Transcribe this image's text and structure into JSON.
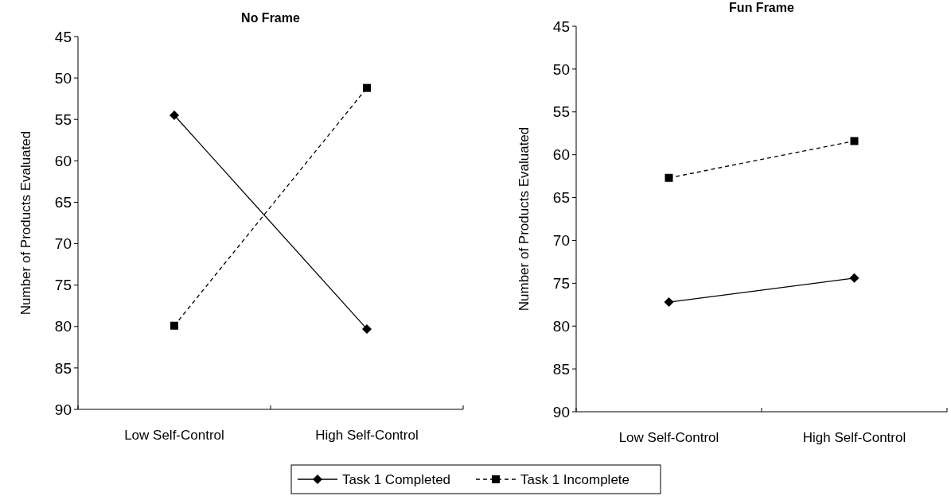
{
  "chart_data": [
    {
      "type": "line",
      "title": "No Frame",
      "ylabel": "Number of Products Evaluated",
      "categories": [
        "Low Self-Control",
        "High Self-Control"
      ],
      "ylim": [
        90,
        45
      ],
      "yticks": [
        45,
        50,
        55,
        60,
        65,
        70,
        75,
        80,
        85,
        90
      ],
      "grid": false,
      "legend": "bottom",
      "series": [
        {
          "name": "Task 1 Completed",
          "color": "#000000",
          "marker": "diamond",
          "line_style": "solid",
          "values": [
            54.5,
            80.3
          ]
        },
        {
          "name": "Task 1 Incomplete",
          "color": "#000000",
          "marker": "square",
          "line_style": "dashed",
          "values": [
            79.9,
            51.2
          ]
        }
      ]
    },
    {
      "type": "line",
      "title": "Fun Frame",
      "ylabel": "Number of Products Evaluated",
      "categories": [
        "Low Self-Control",
        "High Self-Control"
      ],
      "ylim": [
        90,
        45
      ],
      "yticks": [
        45,
        50,
        55,
        60,
        65,
        70,
        75,
        80,
        85,
        90
      ],
      "grid": false,
      "legend": "bottom",
      "series": [
        {
          "name": "Task 1 Completed",
          "color": "#000000",
          "marker": "diamond",
          "line_style": "solid",
          "values": [
            77.2,
            74.4
          ]
        },
        {
          "name": "Task 1 Incomplete",
          "color": "#000000",
          "marker": "square",
          "line_style": "dashed",
          "values": [
            62.7,
            58.4
          ]
        }
      ]
    }
  ]
}
